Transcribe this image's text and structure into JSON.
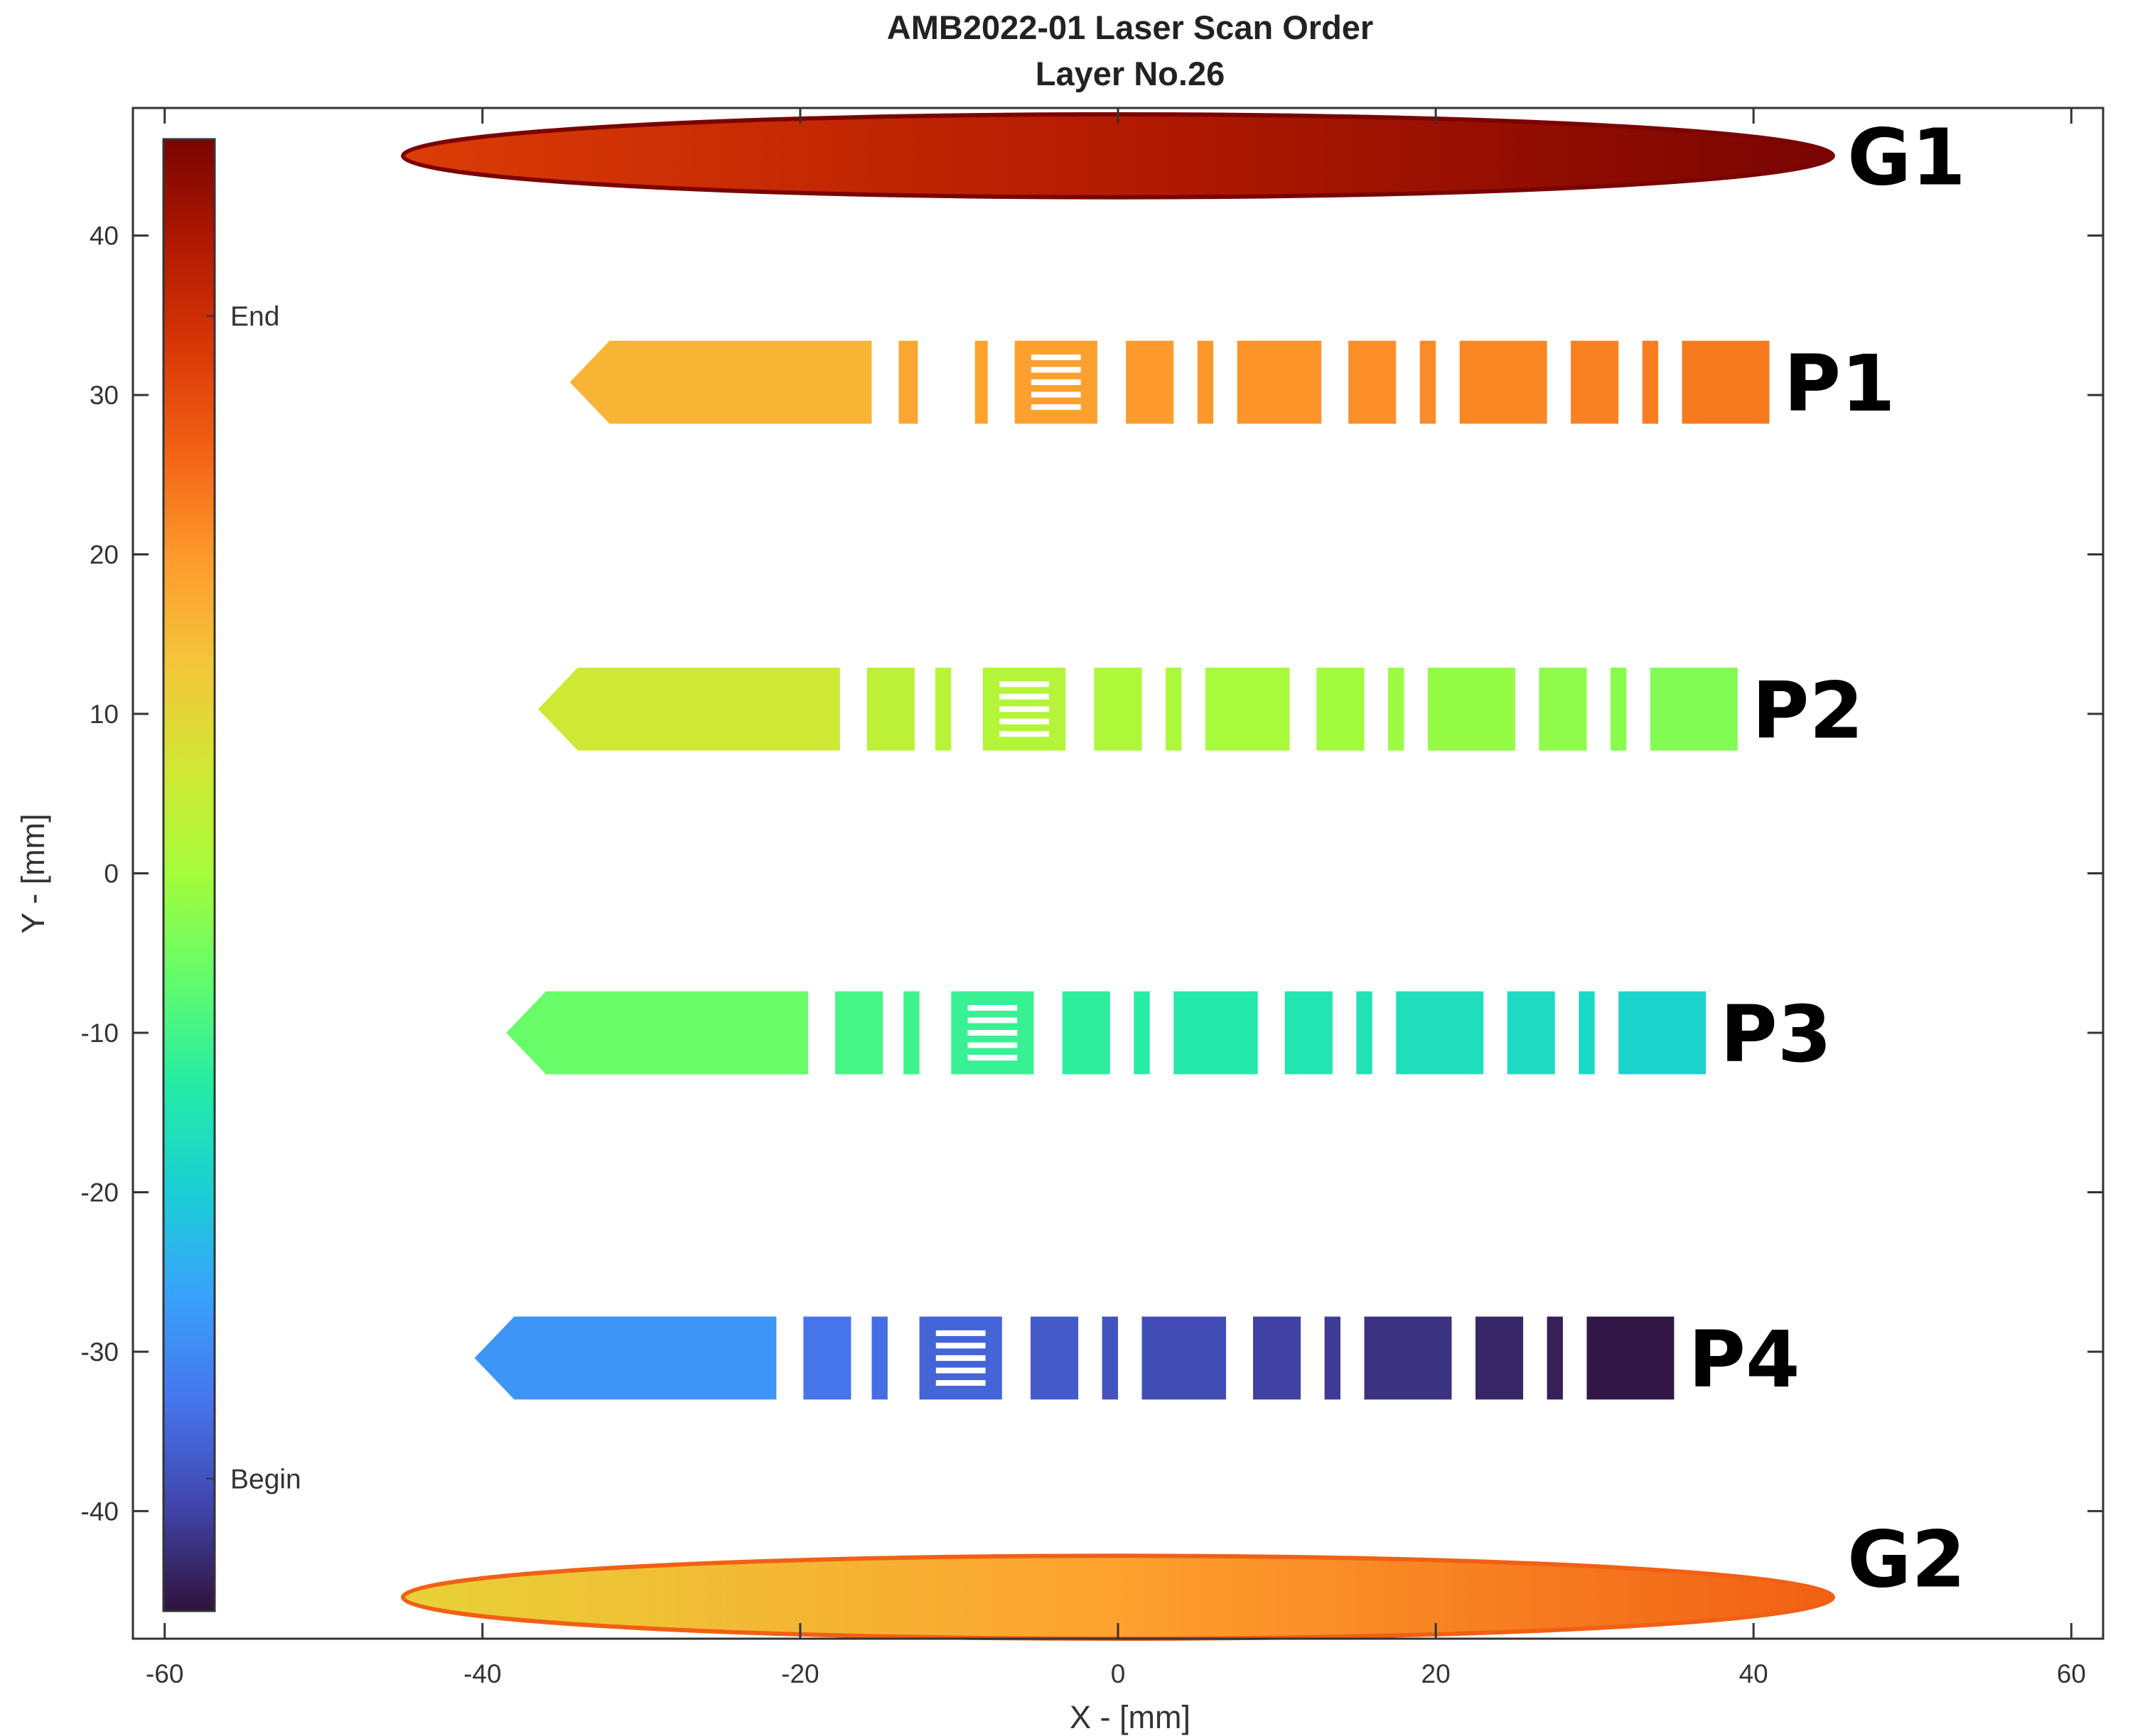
{
  "chart_data": {
    "type": "scatter",
    "title": "AMB2022-01 Laser Scan Order",
    "subtitle": "Layer No.26",
    "xlabel": "X - [mm]",
    "ylabel": "Y - [mm]",
    "xlim": [
      -62,
      62
    ],
    "ylim": [
      -48,
      48
    ],
    "x_ticks": [
      -60,
      -40,
      -20,
      0,
      20,
      40,
      60
    ],
    "y_ticks": [
      -40,
      -30,
      -20,
      -10,
      0,
      10,
      20,
      30,
      40
    ],
    "grid": false,
    "colorbar": {
      "colormap": "turbo",
      "labels": [
        {
          "text": "End",
          "order": 0.88
        },
        {
          "text": "Begin",
          "order": 0.09
        }
      ],
      "colors": [
        "#30123b",
        "#4145ab",
        "#4675ed",
        "#39a2fc",
        "#1bcfd4",
        "#24eca6",
        "#61fc6c",
        "#a4fc3b",
        "#d1e834",
        "#f3c63a",
        "#fe9b2d",
        "#f36315",
        "#d93806",
        "#b11901",
        "#7a0402"
      ]
    },
    "parts": [
      {
        "name": "P1",
        "y_center": 30.8,
        "height": 5.2,
        "x_start": -34.5,
        "order_start": 0.67,
        "order_end": 0.76,
        "segments": [
          [
            -32,
            -15.5
          ],
          [
            -13.8,
            -12.6
          ],
          [
            -9,
            -8.2
          ],
          [
            -6.5,
            -1.3
          ],
          [
            0.5,
            3.5
          ],
          [
            5,
            6
          ],
          [
            7.5,
            12.8
          ],
          [
            14.5,
            17.5
          ],
          [
            19,
            20
          ],
          [
            21.5,
            27
          ],
          [
            28.5,
            31.5
          ],
          [
            33,
            34
          ],
          [
            35.5,
            41
          ]
        ],
        "grid_segment": 3
      },
      {
        "name": "P2",
        "y_center": 10.3,
        "height": 5.2,
        "x_start": -36.5,
        "order_start": 0.57,
        "order_end": 0.46,
        "segments": [
          [
            -34,
            -17.5
          ],
          [
            -15.8,
            -12.8
          ],
          [
            -11.5,
            -10.5
          ],
          [
            -8.5,
            -3.3
          ],
          [
            -1.5,
            1.5
          ],
          [
            3,
            4
          ],
          [
            5.5,
            10.8
          ],
          [
            12.5,
            15.5
          ],
          [
            17,
            18
          ],
          [
            19.5,
            25
          ],
          [
            26.5,
            29.5
          ],
          [
            31,
            32
          ],
          [
            33.5,
            39
          ]
        ],
        "grid_segment": 3
      },
      {
        "name": "P3",
        "y_center": -10.0,
        "height": 5.2,
        "x_start": -38.5,
        "order_start": 0.44,
        "order_end": 0.29,
        "segments": [
          [
            -36,
            -19.5
          ],
          [
            -17.8,
            -14.8
          ],
          [
            -13.5,
            -12.5
          ],
          [
            -10.5,
            -5.3
          ],
          [
            -3.5,
            -0.5
          ],
          [
            1,
            2
          ],
          [
            3.5,
            8.8
          ],
          [
            10.5,
            13.5
          ],
          [
            15,
            16
          ],
          [
            17.5,
            23
          ],
          [
            24.5,
            27.5
          ],
          [
            29,
            30
          ],
          [
            31.5,
            37
          ]
        ],
        "grid_segment": 3
      },
      {
        "name": "P4",
        "y_center": -30.4,
        "height": 5.2,
        "x_start": -40.5,
        "order_start": 0.2,
        "order_end": 0.0,
        "segments": [
          [
            -38,
            -21.5
          ],
          [
            -19.8,
            -16.8
          ],
          [
            -15.5,
            -14.5
          ],
          [
            -12.5,
            -7.3
          ],
          [
            -5.5,
            -2.5
          ],
          [
            -1,
            0
          ],
          [
            1.5,
            6.8
          ],
          [
            8.5,
            11.5
          ],
          [
            13,
            14
          ],
          [
            15.5,
            21
          ],
          [
            22.5,
            25.5
          ],
          [
            27,
            28
          ],
          [
            29.5,
            35
          ]
        ],
        "grid_segment": 3
      }
    ],
    "ellipses": [
      {
        "name": "G1",
        "cx": 0,
        "cy": 45,
        "rx": 45,
        "ry": 2.6,
        "order_start": 0.85,
        "order_end": 1.0
      },
      {
        "name": "G2",
        "cx": 0,
        "cy": -45.4,
        "rx": 45,
        "ry": 2.6,
        "order_start": 0.62,
        "order_end": 0.79
      }
    ]
  }
}
